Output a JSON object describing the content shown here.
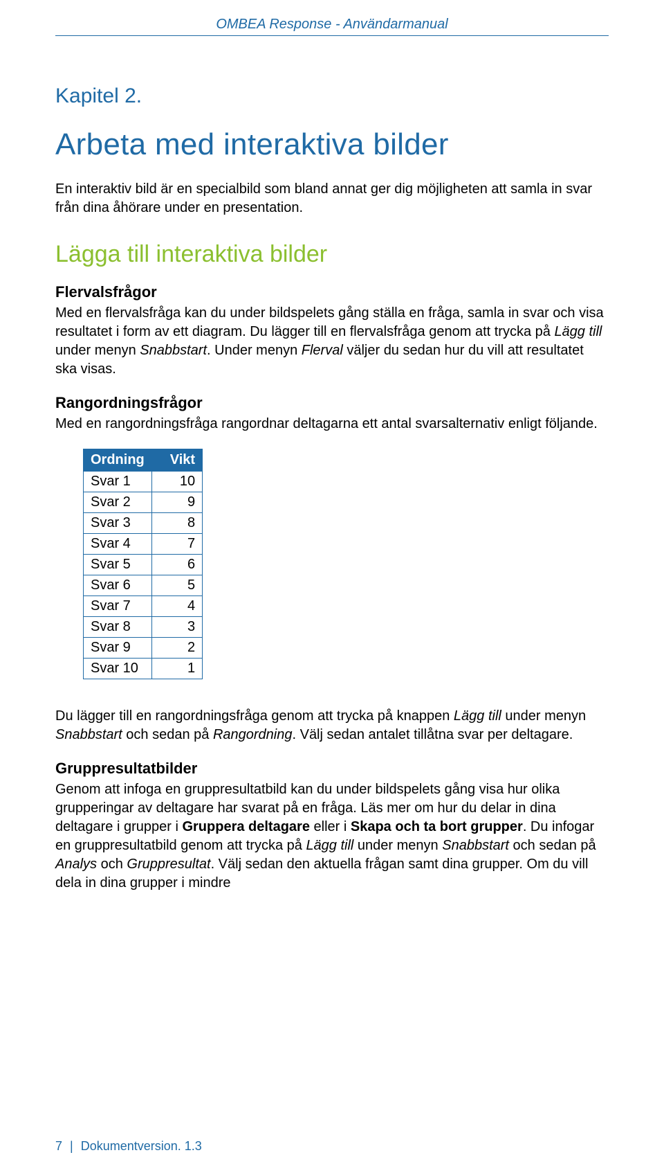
{
  "header": {
    "running": "OMBEA Response - Användarmanual"
  },
  "chapter": {
    "label": "Kapitel 2."
  },
  "title": "Arbeta med interaktiva bilder",
  "intro": "En interaktiv bild är en specialbild som bland annat ger dig möjligheten att samla in svar från dina åhörare under en presentation.",
  "section1": {
    "heading": "Lägga till interaktiva bilder",
    "sub1": {
      "heading": "Flervalsfrågor",
      "p_a": "Med en flervalsfråga kan du under bildspelets gång ställa en fråga, samla in svar och visa resultatet i form av ett diagram. Du lägger till en flervalsfråga genom att trycka på ",
      "p_i1": "Lägg till",
      "p_b": " under menyn ",
      "p_i2": "Snabbstart",
      "p_c": ". Under menyn ",
      "p_i3": "Flerval",
      "p_d": " väljer du sedan hur du vill att resultatet ska visas."
    },
    "sub2": {
      "heading": "Rangordningsfrågor",
      "p": "Med en rangordningsfråga rangordnar deltagarna ett antal svarsalternativ enligt följande."
    },
    "table": {
      "columns": [
        "Ordning",
        "Vikt"
      ],
      "rows": [
        [
          "Svar 1",
          "10"
        ],
        [
          "Svar 2",
          "9"
        ],
        [
          "Svar 3",
          "8"
        ],
        [
          "Svar 4",
          "7"
        ],
        [
          "Svar 5",
          "6"
        ],
        [
          "Svar 6",
          "5"
        ],
        [
          "Svar 7",
          "4"
        ],
        [
          "Svar 8",
          "3"
        ],
        [
          "Svar 9",
          "2"
        ],
        [
          "Svar 10",
          "1"
        ]
      ],
      "header_bg": "#1f6aa5",
      "header_color": "#ffffff",
      "border_color": "#1f6aa5"
    },
    "p_after_table": {
      "a": "Du lägger till en rangordningsfråga genom att trycka på knappen ",
      "i1": "Lägg till",
      "b": " under menyn ",
      "i2": "Snabbstart",
      "c": " och sedan på ",
      "i3": "Rangordning",
      "d": ". Välj sedan antalet tillåtna svar per deltagare."
    },
    "sub3": {
      "heading": "Gruppresultatbilder",
      "a": "Genom att infoga en gruppresultatbild kan du under bildspelets gång visa hur olika grupperingar av deltagare har svarat på en fråga. Läs mer om hur du delar in dina deltagare i grupper i ",
      "b1": "Gruppera deltagare",
      "b": " eller i ",
      "b2": "Skapa och ta bort grupper",
      "c": ". Du infogar en gruppresultatbild genom att trycka på ",
      "i1": "Lägg till",
      "d": " under menyn ",
      "i2": "Snabbstart",
      "e": " och sedan på ",
      "i3": "Analys",
      "f": " och ",
      "i4": "Gruppresultat",
      "g": ". Välj sedan den aktuella frågan samt dina grupper. Om du vill dela in dina grupper i mindre"
    }
  },
  "footer": {
    "page": "7",
    "sep": "|",
    "label": "Dokumentversion. 1.3"
  },
  "colors": {
    "brand_blue": "#1f6aa5",
    "accent_green": "#8bbf2f"
  }
}
